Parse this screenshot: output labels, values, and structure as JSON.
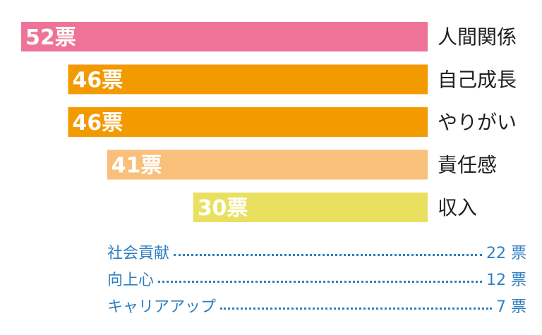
{
  "chart_data": {
    "type": "bar",
    "orientation": "horizontal",
    "categories": [
      "人間関係",
      "自己成長",
      "やりがい",
      "責任感",
      "収入"
    ],
    "values": [
      52,
      46,
      46,
      41,
      30
    ],
    "value_labels": [
      "52票",
      "46票",
      "46票",
      "41票",
      "30票"
    ],
    "colors": [
      "#ee7398",
      "#f39a00",
      "#f39a00",
      "#f8c07a",
      "#e9e060"
    ],
    "xlim": [
      0,
      52
    ],
    "grid": false,
    "legend": "none"
  },
  "others": [
    {
      "label": "社会貢献",
      "value_label": "22 票",
      "value": 22
    },
    {
      "label": "向上心",
      "value_label": "12 票",
      "value": 12
    },
    {
      "label": "キャリアアップ",
      "value_label": "7 票",
      "value": 7
    }
  ],
  "colors": {
    "category_text": "#231f20",
    "value_text": "#ffffff",
    "others_text": "#2e7fc0"
  }
}
